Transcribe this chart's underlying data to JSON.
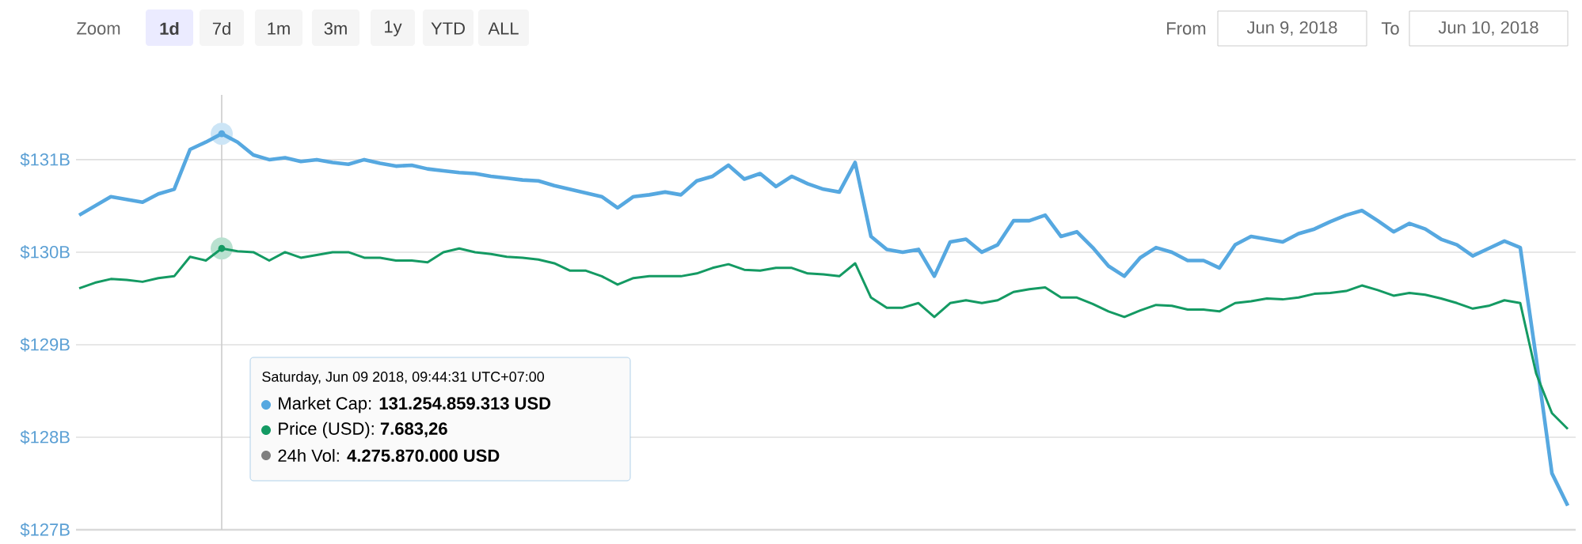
{
  "chart_data": {
    "type": "line",
    "categories": [
      null,
      null,
      null,
      null,
      null,
      null,
      null,
      null,
      null,
      null,
      null,
      null,
      null,
      null,
      null,
      null,
      null,
      null,
      null,
      null,
      null,
      null,
      null,
      null,
      null,
      null,
      null,
      null,
      null,
      null,
      null,
      null,
      null,
      null,
      null,
      null,
      null,
      null,
      null,
      null,
      null,
      null,
      null,
      null,
      null,
      null,
      null,
      null,
      null,
      null,
      null,
      null,
      null,
      null,
      null,
      null,
      null,
      null,
      null,
      null,
      null,
      null,
      null,
      null,
      null,
      null,
      null,
      null,
      null,
      null,
      null,
      null,
      null,
      null,
      null,
      null,
      null,
      null,
      null,
      null,
      null,
      null,
      null,
      null,
      null,
      null,
      null,
      null,
      null,
      null,
      null,
      null,
      null,
      null,
      null
    ],
    "series": [
      {
        "color": "#56a8e0",
        "values": [
          130.4,
          130.5,
          130.6,
          130.57,
          130.54,
          130.63,
          130.68,
          131.11,
          131.19,
          131.28,
          131.19,
          131.05,
          131.0,
          131.02,
          130.98,
          131.0,
          130.97,
          130.95,
          131.0,
          130.96,
          130.93,
          130.94,
          130.9,
          130.88,
          130.86,
          130.85,
          130.82,
          130.8,
          130.78,
          130.77,
          130.72,
          130.68,
          130.64,
          130.6,
          130.48,
          130.6,
          130.62,
          130.65,
          130.62,
          130.77,
          130.82,
          130.94,
          130.79,
          130.85,
          130.71,
          130.82,
          130.74,
          130.68,
          130.65,
          130.97,
          130.17,
          130.03,
          130.0,
          130.03,
          129.74,
          130.11,
          130.14,
          130.0,
          130.08,
          130.34,
          130.34,
          130.4,
          130.17,
          130.22,
          130.05,
          129.85,
          129.74,
          129.94,
          130.05,
          130.0,
          129.91,
          129.91,
          129.83,
          130.08,
          130.17,
          130.14,
          130.11,
          130.2,
          130.25,
          130.33,
          130.4,
          130.45,
          130.34,
          130.22,
          130.31,
          130.25,
          130.14,
          130.08,
          129.96,
          130.04,
          130.12,
          130.05,
          128.86,
          127.61,
          127.26
        ]
      },
      {
        "color": "#149a63",
        "values": [
          129.61,
          129.67,
          129.71,
          129.7,
          129.68,
          129.72,
          129.74,
          129.95,
          129.91,
          130.04,
          130.01,
          130.0,
          129.91,
          130.0,
          129.94,
          129.97,
          130.0,
          130.0,
          129.94,
          129.94,
          129.91,
          129.91,
          129.89,
          130.0,
          130.04,
          130.0,
          129.98,
          129.95,
          129.94,
          129.92,
          129.88,
          129.8,
          129.8,
          129.74,
          129.65,
          129.72,
          129.74,
          129.74,
          129.74,
          129.77,
          129.83,
          129.87,
          129.81,
          129.8,
          129.83,
          129.83,
          129.77,
          129.76,
          129.74,
          129.88,
          129.51,
          129.4,
          129.4,
          129.45,
          129.3,
          129.45,
          129.48,
          129.45,
          129.48,
          129.57,
          129.6,
          129.62,
          129.51,
          129.51,
          129.44,
          129.36,
          129.3,
          129.37,
          129.43,
          129.42,
          129.38,
          129.38,
          129.36,
          129.45,
          129.47,
          129.5,
          129.49,
          129.51,
          129.55,
          129.56,
          129.58,
          129.64,
          129.59,
          129.53,
          129.56,
          129.54,
          129.5,
          129.45,
          129.39,
          129.42,
          129.48,
          129.45,
          128.69,
          128.26,
          128.09
        ]
      }
    ],
    "ylim": [
      127,
      131.7
    ],
    "yticks": [
      {
        "value": 127,
        "label": "$127B"
      },
      {
        "value": 128,
        "label": "$128B"
      },
      {
        "value": 129,
        "label": "$129B"
      },
      {
        "value": 130,
        "label": "$130B"
      },
      {
        "value": 131,
        "label": "$131B"
      }
    ],
    "grid": "y",
    "tick_labels": "y",
    "annotations": [
      "Zoom",
      "1d",
      "7d",
      "1m",
      "3m",
      "1y",
      "YTD",
      "ALL",
      "From",
      "Jun 9, 2018",
      "To",
      "Jun 10, 2018",
      "Saturday, Jun 09 2018, 09:44:31 UTC+07:00",
      "Market Cap: **131.254.859.313 USD**",
      "Price (USD): **7.683,26**",
      "24h Vol: **4.275.870.000 USD**"
    ]
  }
}
